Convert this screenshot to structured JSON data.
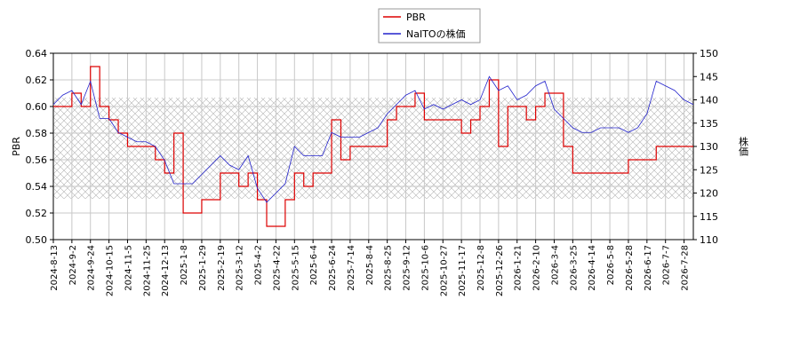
{
  "chart_data": {
    "type": "line",
    "categories": [
      "2024-8-13",
      null,
      "2024-9-2",
      null,
      "2024-9-24",
      null,
      "2024-10-15",
      null,
      "2024-11-5",
      null,
      "2024-11-25",
      null,
      "2024-12-13",
      null,
      "2025-1-8",
      null,
      "2025-1-29",
      null,
      "2025-2-19",
      null,
      "2025-3-12",
      null,
      "2025-4-2",
      null,
      "2025-4-22",
      null,
      "2025-5-15",
      null,
      "2025-6-4",
      null,
      "2025-6-24",
      null,
      "2025-7-14",
      null,
      "2025-8-4",
      null,
      "2025-8-25",
      null,
      "2025-9-12",
      null,
      "2025-10-6",
      null,
      "2025-10-27",
      null,
      "2025-11-17",
      null,
      "2025-12-8",
      null,
      "2025-12-26",
      null,
      "2026-1-21",
      null,
      "2026-2-10",
      null,
      "2026-3-4",
      null,
      "2026-3-25",
      null,
      "2026-4-14",
      null,
      "2026-5-8",
      null,
      "2026-5-28",
      null,
      "2026-6-17",
      null,
      "2026-7-7",
      null,
      "2026-7-28",
      null
    ],
    "series": [
      {
        "name": "PBR",
        "color": "#dd0000",
        "step": true,
        "values": [
          0.6,
          0.6,
          0.61,
          0.6,
          0.63,
          0.6,
          0.59,
          0.58,
          0.57,
          0.57,
          0.57,
          0.56,
          0.55,
          0.58,
          0.52,
          0.52,
          0.53,
          0.53,
          0.55,
          0.55,
          0.54,
          0.55,
          0.53,
          0.51,
          0.51,
          0.53,
          0.55,
          0.54,
          0.55,
          0.55,
          0.59,
          0.56,
          0.57,
          0.57,
          0.57,
          0.57,
          0.59,
          0.6,
          0.6,
          0.61,
          0.59,
          0.59,
          0.59,
          0.59,
          0.58,
          0.59,
          0.6,
          0.62,
          0.57,
          0.6,
          0.6,
          0.59,
          0.6,
          0.61,
          0.61,
          0.57,
          0.55,
          0.55,
          0.55,
          0.55,
          0.55,
          0.55,
          0.56,
          0.56,
          0.56,
          0.57,
          0.57,
          0.57,
          0.57,
          0.57
        ]
      },
      {
        "name": "NaITOの株価",
        "color": "#2222cc",
        "axis": "y2",
        "values": [
          139,
          141,
          142,
          139,
          144,
          136,
          136,
          133,
          132,
          131,
          131,
          130,
          127,
          122,
          122,
          122,
          124,
          126,
          128,
          126,
          125,
          128,
          121,
          118,
          120,
          122,
          130,
          128,
          128,
          128,
          133,
          132,
          132,
          132,
          133,
          134,
          137,
          139,
          141,
          142,
          138,
          139,
          138,
          139,
          140,
          139,
          140,
          145,
          142,
          143,
          140,
          141,
          143,
          144,
          138,
          136,
          134,
          133,
          133,
          134,
          134,
          134,
          133,
          134,
          137,
          144,
          143,
          142,
          140,
          139
        ]
      }
    ],
    "ylabel": "PBR",
    "y2label": "株価",
    "ylim": [
      0.5,
      0.64
    ],
    "yticks": [
      {
        "value": 0.5,
        "label": "0.50"
      },
      {
        "value": 0.52,
        "label": "0.52"
      },
      {
        "value": 0.54,
        "label": "0.54"
      },
      {
        "value": 0.56,
        "label": "0.56"
      },
      {
        "value": 0.58,
        "label": "0.58"
      },
      {
        "value": 0.6,
        "label": "0.60"
      },
      {
        "value": 0.62,
        "label": "0.62"
      },
      {
        "value": 0.64,
        "label": "0.64"
      }
    ],
    "y2lim": [
      110,
      150
    ],
    "y2ticks": [
      110,
      115,
      120,
      125,
      130,
      135,
      140,
      145,
      150
    ],
    "band": [
      0.5307,
      0.6067
    ],
    "grid": true,
    "legend": "top"
  }
}
